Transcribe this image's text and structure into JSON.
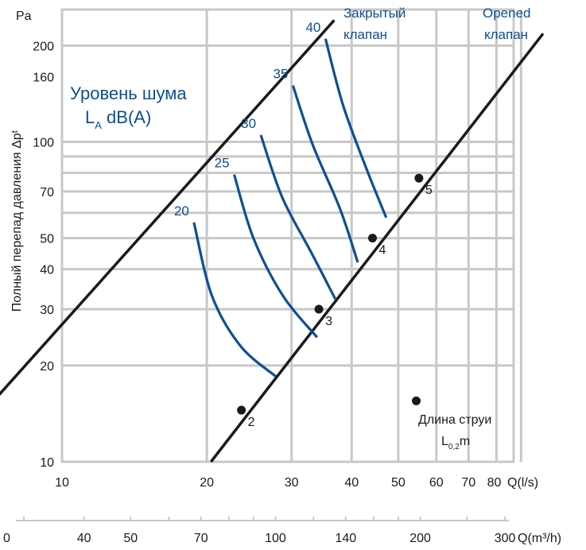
{
  "chart_data": {
    "type": "line",
    "xscale": "log",
    "yscale": "log",
    "xlim": [
      10,
      100
    ],
    "ylim": [
      10,
      240
    ],
    "grid": true,
    "y_unit_label": "Pa",
    "ylabel": "Полный перепад давления Δpᵗ",
    "y_ticks": [
      10,
      20,
      30,
      40,
      50,
      70,
      100,
      160,
      200
    ],
    "x_ticks": [
      10,
      20,
      30,
      40,
      50,
      60,
      70,
      80
    ],
    "x_unit_label": "Q(l/s)",
    "x2_unit_label": "Q(m³/h)",
    "x2_ticks": [
      40,
      50,
      70,
      100,
      140,
      200,
      300
    ],
    "x2_edge_label": "0",
    "noise_title": "Уровень шума",
    "noise_sub_main": "L",
    "noise_sub_index": "A",
    "noise_sub_unit": " dB(A)",
    "legend_label_main": "Длина струи",
    "legend_label_sub_main": "L",
    "legend_label_sub_index": "0,2",
    "legend_label_sub_unit": "m",
    "series": [
      {
        "name_line1": "Закрытый",
        "name_line2": "клапан",
        "color": "#1a1a1a",
        "points": [
          [
            7.4,
            16.2
          ],
          [
            36.8,
            240
          ]
        ]
      },
      {
        "name_line1": "Opened",
        "name_line2": "клапан",
        "color": "#1a1a1a",
        "points": [
          [
            20.4,
            10
          ],
          [
            100,
            218
          ]
        ]
      }
    ],
    "noise_curves": [
      {
        "label": "20",
        "points": [
          [
            18.8,
            56
          ],
          [
            20.5,
            33
          ],
          [
            23.5,
            23
          ],
          [
            27.8,
            18.5
          ]
        ]
      },
      {
        "label": "25",
        "points": [
          [
            22.8,
            79
          ],
          [
            25.0,
            50
          ],
          [
            28.8,
            33
          ],
          [
            33.9,
            24.5
          ]
        ]
      },
      {
        "label": "30",
        "points": [
          [
            25.9,
            105
          ],
          [
            28.7,
            67
          ],
          [
            33.0,
            45
          ],
          [
            37.1,
            32
          ]
        ]
      },
      {
        "label": "35",
        "points": [
          [
            30.2,
            150
          ],
          [
            33.2,
            98
          ],
          [
            37.8,
            62
          ],
          [
            41.2,
            42
          ]
        ]
      },
      {
        "label": "40",
        "points": [
          [
            35.3,
            210
          ],
          [
            38.4,
            130
          ],
          [
            43.0,
            82
          ],
          [
            47.2,
            58
          ]
        ]
      }
    ],
    "throw_points": [
      {
        "label": "2",
        "x": 23.6,
        "y": 14.5
      },
      {
        "label": "3",
        "x": 34.2,
        "y": 30
      },
      {
        "label": "4",
        "x": 44.2,
        "y": 50
      },
      {
        "label": "5",
        "x": 55.2,
        "y": 77
      }
    ],
    "legend_marker": {
      "x": 54.5,
      "y": 15.5
    },
    "colors": {
      "noise": "#0d4f94",
      "line": "#1a1a1a",
      "grid": "#c8c8c8",
      "dot": "#1a1a1a"
    }
  }
}
